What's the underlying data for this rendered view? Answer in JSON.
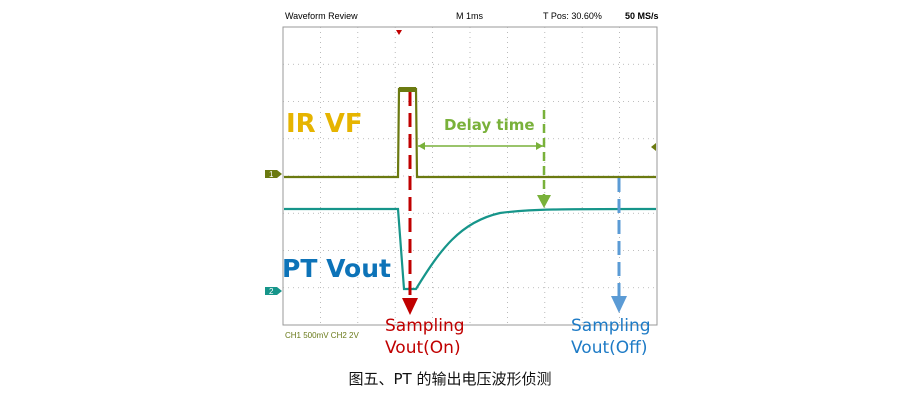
{
  "header": {
    "title": "Waveform Review",
    "timebase": "M 1ms",
    "trigger_pos": "T Pos: 30.60%",
    "sample_rate": "50 MS/s"
  },
  "channel_markers": {
    "ch1": "1",
    "ch2": "2"
  },
  "labels": {
    "ir_vf": "IR VF",
    "pt_vout": "PT Vout",
    "delay": "Delay time",
    "sampling_on_line1": "Sampling",
    "sampling_on_line2": "Vout(On)",
    "sampling_off_line1": "Sampling",
    "sampling_off_line2": "Vout(Off)"
  },
  "footer": {
    "ch_settings": "CH1 500mV  CH2 2V"
  },
  "caption": "图五、PT 的输出电压波形侦测",
  "colors": {
    "ir_vf": "#e6b400",
    "pt_vout": "#0d73b8",
    "ch1_trace": "#6b7a10",
    "ch2_trace": "#16958a",
    "delay": "#79b13a",
    "sampling_on": "#c00000",
    "sampling_off": "#5b9bd5",
    "grid": "#aaaaaa"
  }
}
